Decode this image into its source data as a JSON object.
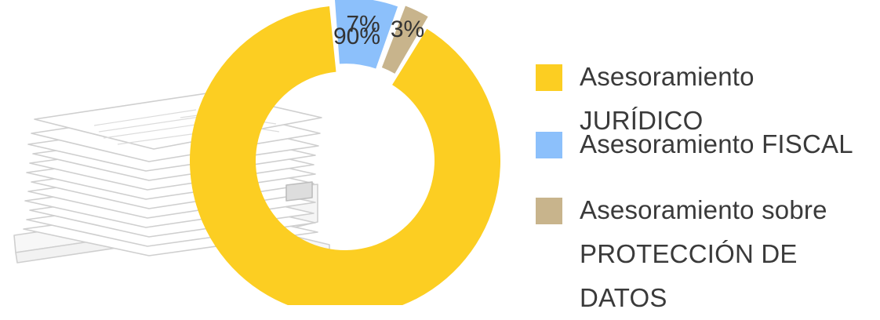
{
  "chart_data": {
    "type": "pie",
    "title": "",
    "slices": [
      {
        "label": "Asesoramiento JURÍDICO",
        "value": 90,
        "value_label": "90%",
        "color": "#FCCE22"
      },
      {
        "label": "Asesoramiento FISCAL",
        "value": 7,
        "value_label": "7%",
        "color": "#8CC0FB"
      },
      {
        "label": "Asesoramiento sobre\nPROTECCIÓN DE DATOS",
        "value": 3,
        "value_label": "3%",
        "color": "#C8B48C"
      }
    ],
    "donut": true,
    "legend_position": "right",
    "background_illustration": "stack-of-documents"
  },
  "colors": {
    "label_text": "#333333",
    "legend_text": "#3a3a3a",
    "illustration_stroke": "#c9c9c9"
  }
}
